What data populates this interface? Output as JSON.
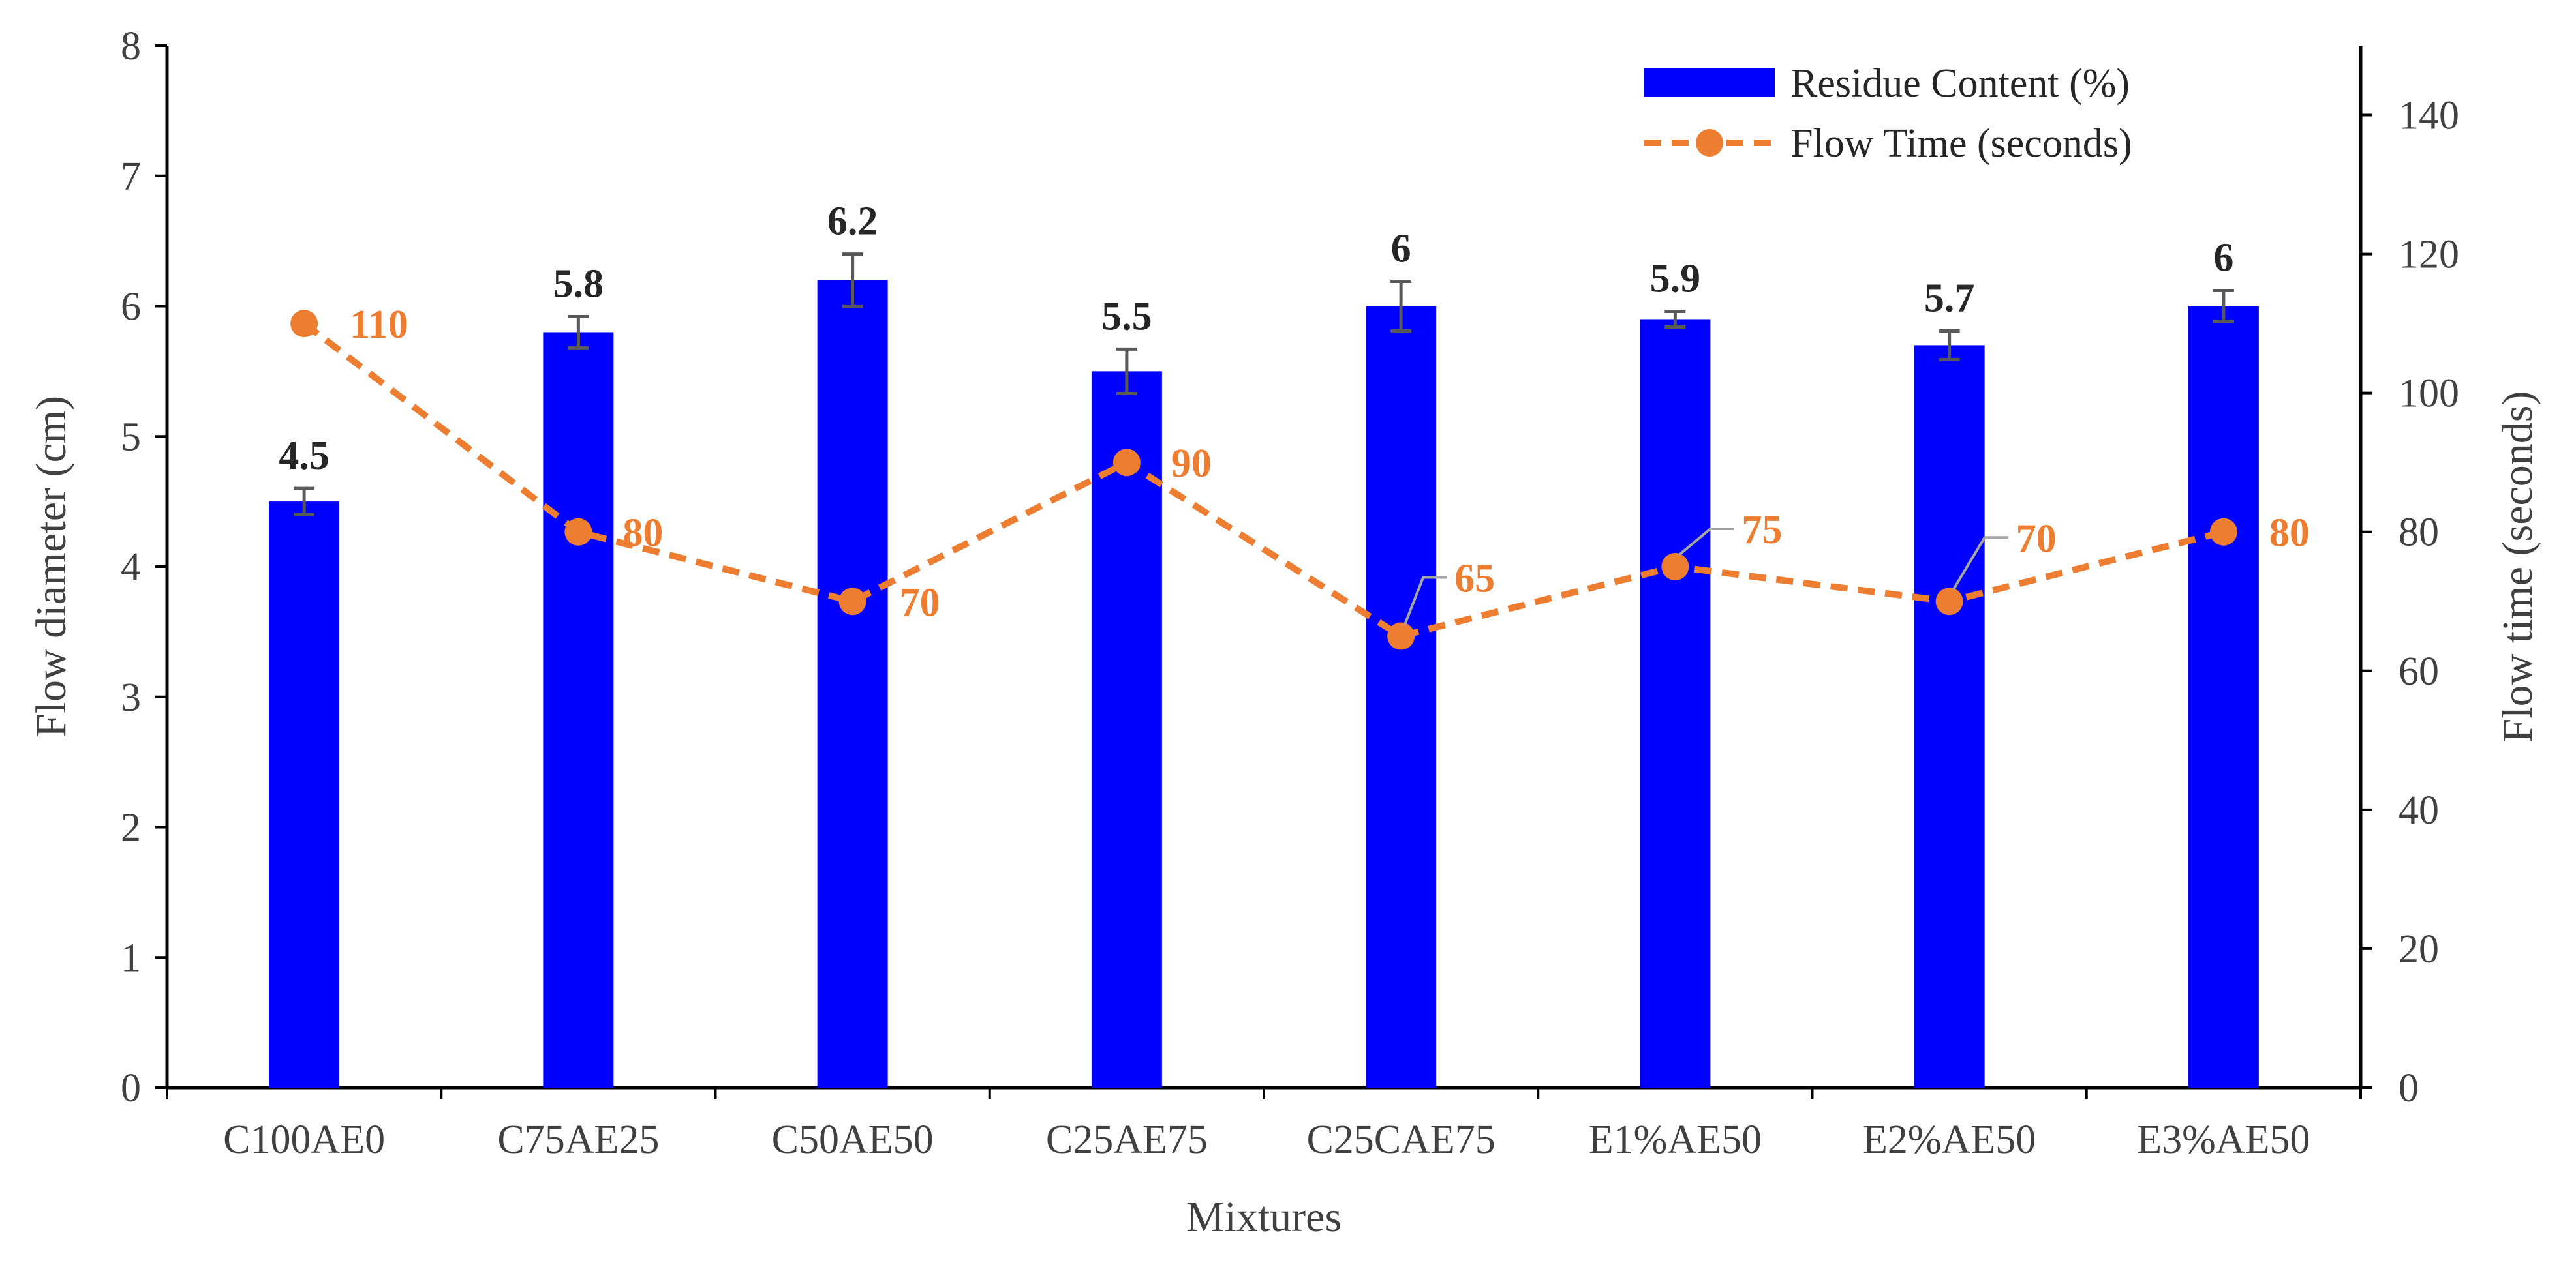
{
  "chart_data": {
    "type": "bar",
    "categories": [
      "C100AE0",
      "C75AE25",
      "C50AE50",
      "C25AE75",
      "C25CAE75",
      "E1%AE50",
      "E2%AE50",
      "E3%AE50"
    ],
    "series": [
      {
        "name": "Residue Content (%)",
        "kind": "bar",
        "axis": "left",
        "color": "#0000FF",
        "values": [
          4.5,
          5.8,
          6.2,
          5.5,
          6,
          5.9,
          5.7,
          6
        ],
        "labels": [
          "4.5",
          "5.8",
          "6.2",
          "5.5",
          "6",
          "5.9",
          "5.7",
          "6"
        ],
        "errors": [
          0.1,
          0.12,
          0.2,
          0.17,
          0.19,
          0.06,
          0.11,
          0.12
        ]
      },
      {
        "name": "Flow Time (seconds)",
        "kind": "line",
        "axis": "right",
        "color": "#ED7D31",
        "line_style": "dashed",
        "values": [
          110,
          80,
          70,
          90,
          65,
          75,
          70,
          80
        ],
        "labels": [
          "110",
          "80",
          "70",
          "90",
          "65",
          "75",
          "70",
          "80"
        ]
      }
    ],
    "xlabel": "Mixtures",
    "ylabel": "Flow diameter (cm)",
    "y2label": "Flow time (seconds)",
    "ylim": [
      0,
      8
    ],
    "y2lim": [
      0,
      150
    ],
    "yticks": [
      "0",
      "1",
      "2",
      "3",
      "4",
      "5",
      "6",
      "7",
      "8"
    ],
    "y2ticks": [
      "0",
      "20",
      "40",
      "60",
      "80",
      "100",
      "120",
      "140"
    ],
    "legend_position": "top-right",
    "grid": false
  }
}
